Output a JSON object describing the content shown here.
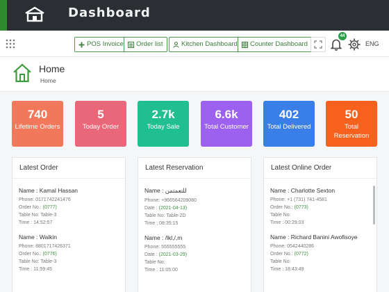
{
  "header": {
    "title": "Dashboard"
  },
  "toolbar": {
    "buttons": [
      "POS Invoice",
      "Order list",
      "Kitchen Dashboard",
      "Counter Dashboard"
    ],
    "notification_count": "44",
    "language": "ENG"
  },
  "page": {
    "title": "Home",
    "breadcrumb": "Home"
  },
  "stats": [
    {
      "value": "740",
      "label": "Lifetime Orders",
      "color": "#f2785c"
    },
    {
      "value": "5",
      "label": "Today Order",
      "color": "#e8687a"
    },
    {
      "value": "2.7k",
      "label": "Today Sale",
      "color": "#1fbf8f"
    },
    {
      "value": "6.6k",
      "label": "Total Customer",
      "color": "#9c61ee"
    },
    {
      "value": "402",
      "label": "Total Delivered",
      "color": "#3a7fe8"
    },
    {
      "value": "50",
      "label": "Total Reservation",
      "color": "#f6621e"
    }
  ],
  "latest_order": {
    "title": "Latest Order",
    "items": [
      {
        "name": "Name : Kamal Hassan",
        "phone": "Phone: 0171742241476",
        "order_prefix": "Order No.: ",
        "order_no": "(0777)",
        "table": "Table No: Table-3",
        "time": "Time : 14:52:57"
      },
      {
        "name": "Name : Walkin",
        "phone": "Phone: 8801717426371",
        "order_prefix": "Order No.: ",
        "order_no": "(0776)",
        "table": "Table No: Table-3",
        "time": "Time : 11:59:45"
      }
    ]
  },
  "latest_reservation": {
    "title": "Latest Reservation",
    "items": [
      {
        "name": "Name : للتعمتمن",
        "phone": "Phone: +966564209080",
        "date_prefix": "Date : ",
        "date": "(2021-04-13)",
        "table": "Table No: Table-2D",
        "time": "Time : 08:35:15"
      },
      {
        "name": "Name : /lkl,/,m",
        "phone": "Phone: 555555555",
        "date_prefix": "Date : ",
        "date": "(2021-03-29)",
        "table": "Table No:",
        "time": "Time : 11:05:00"
      }
    ]
  },
  "latest_online": {
    "title": "Latest Online Order",
    "items": [
      {
        "name": "Name : Charlotte Sexton",
        "phone": "Phone: +1 (731) 741-4581",
        "order_prefix": "Order No.: ",
        "order_no": "(0773)",
        "table": "Table No:",
        "time": "Time : 00:29:03"
      },
      {
        "name": "Name : Richard Banini Awofisoye",
        "phone": "Phone: 0542440286",
        "order_prefix": "Order No.: ",
        "order_no": "(0772)",
        "table": "Table No:",
        "time": "Time : 18:43:49"
      }
    ]
  }
}
